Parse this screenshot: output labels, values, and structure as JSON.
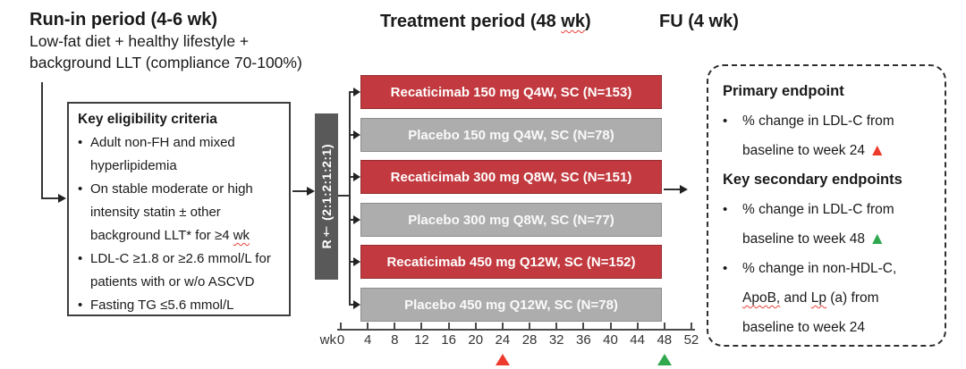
{
  "headers": {
    "runin_title": "Run-in period (4-6 wk)",
    "runin_line1": "Low-fat diet + healthy lifestyle +",
    "runin_line2": "background LLT (compliance 70-100%)",
    "treatment_title_pre": "Treatment period (48 ",
    "treatment_title_wk": "wk",
    "treatment_title_post": ")",
    "fu_title": "FU (4 wk)"
  },
  "eligibility": {
    "title": "Key eligibility criteria",
    "bullet_glyph": "•",
    "bullet1": "Adult non-FH and mixed hyperlipidemia",
    "bullet2_pre": "On stable moderate or high intensity statin ± other background LLT* for ≥4 ",
    "bullet2_wk": "wk",
    "bullet3": "LDL-C ≥1.8 or ≥2.6 mmol/L for patients with or w/o ASCVD",
    "bullet4": "Fasting TG ≤5.6 mmol/L"
  },
  "randomization": {
    "label": "R† (2:1:2:1:2:1)"
  },
  "arms": [
    {
      "label": "Recaticimab 150 mg Q4W, SC (N=153)",
      "type": "active"
    },
    {
      "label": "Placebo 150 mg Q4W, SC (N=78)",
      "type": "placebo"
    },
    {
      "label": "Recaticimab 300 mg Q8W, SC (N=151)",
      "type": "active"
    },
    {
      "label": "Placebo 300 mg Q8W, SC (N=77)",
      "type": "placebo"
    },
    {
      "label": "Recaticimab 450 mg Q12W, SC (N=152)",
      "type": "active"
    },
    {
      "label": "Placebo 450 mg Q12W, SC (N=78)",
      "type": "placebo"
    }
  ],
  "axis": {
    "unit_label": "wk",
    "ticks": [
      "0",
      "4",
      "8",
      "12",
      "16",
      "20",
      "24",
      "28",
      "32",
      "36",
      "40",
      "44",
      "48",
      "52"
    ],
    "marker_red_week": "24",
    "marker_green_week": "48"
  },
  "endpoints": {
    "primary_title": "Primary endpoint",
    "bullet_glyph": "•",
    "p1_line1": "% change in LDL-C from",
    "p1_line2": "baseline to week 24 ",
    "secondary_title": "Key secondary endpoints",
    "s1_line1": "% change in LDL-C from",
    "s1_line2": "baseline to week 48 ",
    "s2_line1": "% change in non-HDL-C,",
    "s2_line2_apob": "ApoB,",
    "s2_line2_mid": " and ",
    "s2_line2_lp": "Lp",
    "s2_line2_post": " (a) from",
    "s2_line3": "baseline to week 24"
  },
  "icons": {
    "triangle_up_glyph": "▲"
  },
  "colors": {
    "active_bar": "#c23a3f",
    "placebo_bar": "#adadad",
    "randomization_bar": "#595959",
    "marker_red": "#ee3a2d",
    "marker_green": "#2fa84e"
  }
}
